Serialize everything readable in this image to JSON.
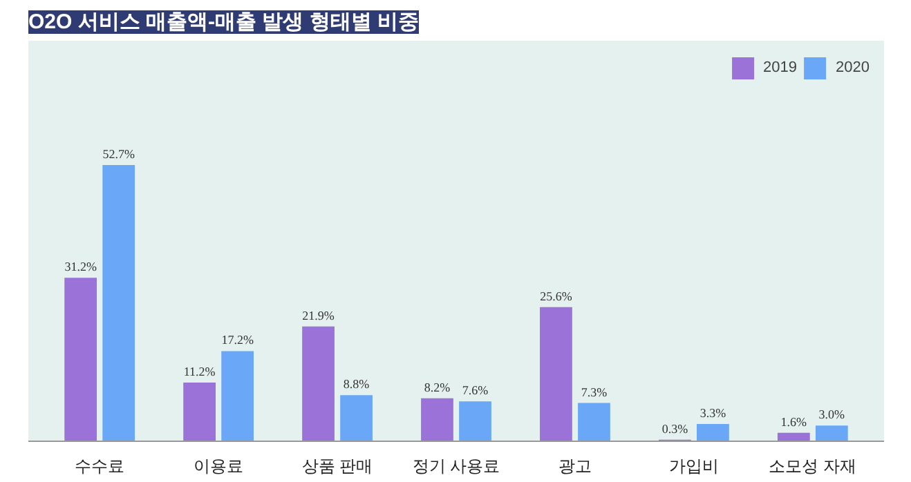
{
  "chart_data": {
    "type": "bar",
    "title": "O2O 서비스 매출액-매출 발생 형태별 비중",
    "categories": [
      "수수료",
      "이용료",
      "상품 판매",
      "정기 사용료",
      "광고",
      "가입비",
      "소모성 자재"
    ],
    "series": [
      {
        "name": "2019",
        "color": "#9b72d8",
        "values": [
          31.2,
          11.2,
          21.9,
          8.2,
          25.6,
          0.3,
          1.6
        ],
        "value_labels": [
          "31.2%",
          "11.2%",
          "21.9%",
          "8.2%",
          "25.6%",
          "0.3%",
          "1.6%"
        ]
      },
      {
        "name": "2020",
        "color": "#6aa8f7",
        "values": [
          52.7,
          17.2,
          8.8,
          7.6,
          7.3,
          3.3,
          3.0
        ],
        "value_labels": [
          "52.7%",
          "17.2%",
          "8.8%",
          "7.6%",
          "7.3%",
          "3.3%",
          "3.0%"
        ]
      }
    ],
    "legend": "top right",
    "grid": false
  }
}
